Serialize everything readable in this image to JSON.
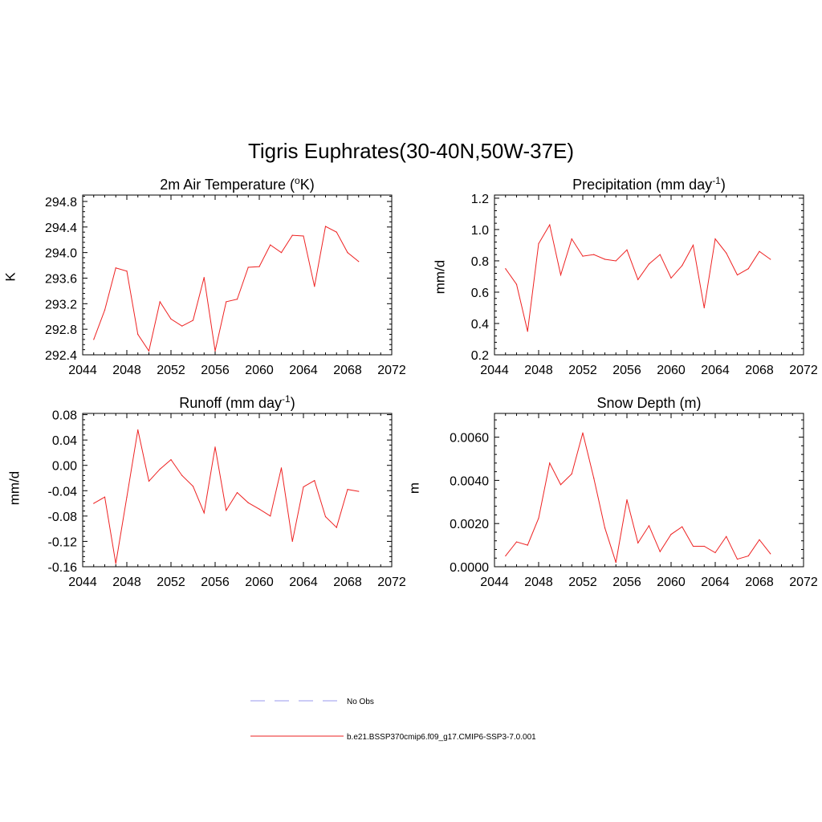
{
  "title": "Tigris Euphrates(30-40N,50W-37E)",
  "legend": {
    "entries": [
      {
        "label": "No Obs",
        "color": "#9999ee",
        "style": "dashed"
      },
      {
        "label": "b.e21.BSSP370cmip6.f09_g17.CMIP6-SSP3-7.0.001",
        "color": "#ee2222",
        "style": "solid"
      }
    ]
  },
  "chart_data": [
    {
      "type": "line",
      "title": "2m Air Temperature (",
      "title_sup": "o",
      "title_after": "K)",
      "ylabel": "K",
      "xlim": [
        2044,
        2072
      ],
      "ylim": [
        292.4,
        294.9
      ],
      "xticks": [
        2044,
        2048,
        2052,
        2056,
        2060,
        2064,
        2068,
        2072
      ],
      "yticks": [
        292.4,
        292.8,
        293.2,
        293.6,
        294.0,
        294.4,
        294.8
      ],
      "ytick_labels": [
        "292.4",
        "292.8",
        "293.2",
        "293.6",
        "294.0",
        "294.4",
        "294.8"
      ],
      "x": [
        2045,
        2046,
        2047,
        2048,
        2049,
        2050,
        2051,
        2052,
        2053,
        2054,
        2055,
        2056,
        2057,
        2058,
        2059,
        2060,
        2061,
        2062,
        2063,
        2064,
        2065,
        2066,
        2067,
        2068,
        2069
      ],
      "series": [
        {
          "color": "#ee2222",
          "values": [
            292.64,
            293.1,
            293.76,
            293.71,
            292.72,
            292.46,
            293.23,
            292.96,
            292.85,
            292.94,
            293.61,
            292.46,
            293.23,
            293.27,
            293.77,
            293.78,
            294.12,
            294.0,
            294.27,
            294.26,
            293.47,
            294.41,
            294.32,
            294.0,
            293.86
          ]
        }
      ]
    },
    {
      "type": "line",
      "title": "Precipitation (mm day",
      "title_sup": "-1",
      "title_after": ")",
      "ylabel": "mm/d",
      "xlim": [
        2044,
        2072
      ],
      "ylim": [
        0.2,
        1.22
      ],
      "xticks": [
        2044,
        2048,
        2052,
        2056,
        2060,
        2064,
        2068,
        2072
      ],
      "yticks": [
        0.2,
        0.4,
        0.6,
        0.8,
        1.0,
        1.2
      ],
      "ytick_labels": [
        "0.2",
        "0.4",
        "0.6",
        "0.8",
        "1.0",
        "1.2"
      ],
      "x": [
        2045,
        2046,
        2047,
        2048,
        2049,
        2050,
        2051,
        2052,
        2053,
        2054,
        2055,
        2056,
        2057,
        2058,
        2059,
        2060,
        2061,
        2062,
        2063,
        2064,
        2065,
        2066,
        2067,
        2068,
        2069
      ],
      "series": [
        {
          "color": "#ee2222",
          "values": [
            0.75,
            0.65,
            0.35,
            0.91,
            1.03,
            0.71,
            0.94,
            0.83,
            0.84,
            0.81,
            0.8,
            0.87,
            0.68,
            0.78,
            0.84,
            0.69,
            0.77,
            0.9,
            0.5,
            0.94,
            0.85,
            0.71,
            0.75,
            0.86,
            0.81
          ]
        }
      ]
    },
    {
      "type": "line",
      "title": "Runoff (mm day",
      "title_sup": "-1",
      "title_after": ")",
      "ylabel": "mm/d",
      "xlim": [
        2044,
        2072
      ],
      "ylim": [
        -0.16,
        0.082
      ],
      "xticks": [
        2044,
        2048,
        2052,
        2056,
        2060,
        2064,
        2068,
        2072
      ],
      "yticks": [
        -0.16,
        -0.12,
        -0.08,
        -0.04,
        0.0,
        0.04,
        0.08
      ],
      "ytick_labels": [
        "-0.16",
        "-0.12",
        "-0.08",
        "-0.04",
        "0.00",
        "0.04",
        "0.08"
      ],
      "x": [
        2045,
        2046,
        2047,
        2048,
        2049,
        2050,
        2051,
        2052,
        2053,
        2054,
        2055,
        2056,
        2057,
        2058,
        2059,
        2060,
        2061,
        2062,
        2063,
        2064,
        2065,
        2066,
        2067,
        2068,
        2069
      ],
      "series": [
        {
          "color": "#ee2222",
          "values": [
            -0.06,
            -0.05,
            -0.155,
            -0.05,
            0.056,
            -0.025,
            -0.006,
            0.009,
            -0.016,
            -0.033,
            -0.075,
            0.029,
            -0.071,
            -0.043,
            -0.059,
            -0.069,
            -0.08,
            -0.004,
            -0.12,
            -0.034,
            -0.024,
            -0.081,
            -0.098,
            -0.038,
            -0.041
          ]
        }
      ]
    },
    {
      "type": "line",
      "title": "Snow Depth (m)",
      "title_sup": "",
      "title_after": "",
      "ylabel": "m",
      "xlim": [
        2044,
        2072
      ],
      "ylim": [
        0.0,
        0.0071
      ],
      "xticks": [
        2044,
        2048,
        2052,
        2056,
        2060,
        2064,
        2068,
        2072
      ],
      "yticks": [
        0.0,
        0.002,
        0.004,
        0.006
      ],
      "ytick_labels": [
        "0.0000",
        "0.0020",
        "0.0040",
        "0.0060"
      ],
      "x": [
        2045,
        2046,
        2047,
        2048,
        2049,
        2050,
        2051,
        2052,
        2053,
        2054,
        2055,
        2056,
        2057,
        2058,
        2059,
        2060,
        2061,
        2062,
        2063,
        2064,
        2065,
        2066,
        2067,
        2068,
        2069
      ],
      "series": [
        {
          "color": "#ee2222",
          "values": [
            0.0005,
            0.00115,
            0.001,
            0.00225,
            0.0048,
            0.0038,
            0.0043,
            0.0062,
            0.0041,
            0.0018,
            0.0002,
            0.0031,
            0.0011,
            0.0019,
            0.0007,
            0.0015,
            0.00185,
            0.00095,
            0.00095,
            0.00065,
            0.0014,
            0.00035,
            0.0005,
            0.00125,
            0.0006
          ]
        }
      ]
    }
  ]
}
